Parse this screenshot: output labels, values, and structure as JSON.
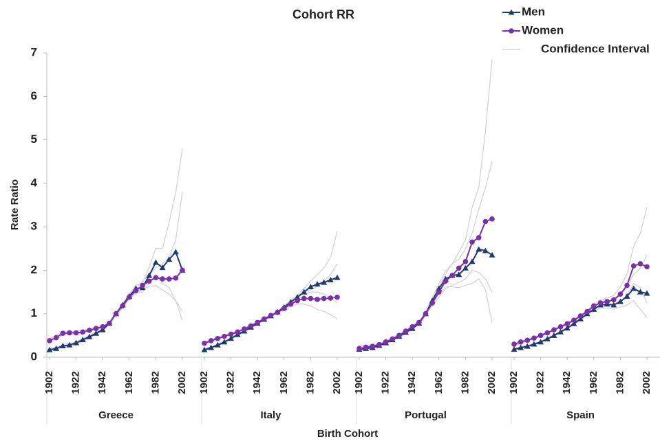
{
  "chart_data": {
    "type": "line",
    "title": "Cohort RR",
    "y_label": "Rate Ratio",
    "x_label": "Birth Cohort",
    "ylim": [
      0,
      7
    ],
    "yticks": [
      0,
      1,
      2,
      3,
      4,
      5,
      6,
      7
    ],
    "xlim": [
      1902,
      2002
    ],
    "xticks": [
      1902,
      1922,
      1942,
      1962,
      1982,
      2002
    ],
    "x": [
      1902,
      1907,
      1912,
      1917,
      1922,
      1927,
      1932,
      1937,
      1942,
      1947,
      1952,
      1957,
      1962,
      1967,
      1972,
      1977,
      1982,
      1987,
      1992,
      1997,
      2002
    ],
    "ci_label": "Confidence Interval",
    "ci_color": "#d3d3d3",
    "panels": [
      {
        "name": "Greece",
        "series": [
          {
            "name": "Men",
            "color": "#1f3a6e",
            "marker": "triangle",
            "values": [
              0.17,
              0.2,
              0.26,
              0.28,
              0.33,
              0.4,
              0.47,
              0.55,
              0.63,
              0.78,
              1.0,
              1.2,
              1.4,
              1.58,
              1.6,
              1.88,
              2.18,
              2.06,
              2.25,
              2.42,
              2.0
            ],
            "lower": [
              0.15,
              0.18,
              0.23,
              0.25,
              0.3,
              0.37,
              0.44,
              0.52,
              0.6,
              0.75,
              0.97,
              1.15,
              1.35,
              1.5,
              1.5,
              1.7,
              1.9,
              1.7,
              1.6,
              1.3,
              0.85
            ],
            "upper": [
              0.2,
              0.23,
              0.29,
              0.31,
              0.36,
              0.43,
              0.5,
              0.58,
              0.66,
              0.81,
              1.03,
              1.25,
              1.45,
              1.66,
              1.7,
              2.08,
              2.5,
              2.5,
              3.1,
              3.8,
              4.8
            ]
          },
          {
            "name": "Women",
            "color": "#7b2fa8",
            "marker": "circle",
            "values": [
              0.38,
              0.45,
              0.55,
              0.56,
              0.56,
              0.58,
              0.62,
              0.66,
              0.7,
              0.78,
              1.0,
              1.18,
              1.38,
              1.53,
              1.65,
              1.75,
              1.83,
              1.8,
              1.8,
              1.82,
              2.0
            ],
            "lower": [
              0.34,
              0.41,
              0.51,
              0.52,
              0.53,
              0.55,
              0.59,
              0.63,
              0.67,
              0.76,
              0.97,
              1.14,
              1.33,
              1.47,
              1.56,
              1.62,
              1.65,
              1.55,
              1.45,
              1.3,
              1.05
            ],
            "upper": [
              0.43,
              0.5,
              0.6,
              0.6,
              0.6,
              0.62,
              0.65,
              0.7,
              0.73,
              0.81,
              1.03,
              1.22,
              1.43,
              1.6,
              1.75,
              1.9,
              2.05,
              2.15,
              2.3,
              2.7,
              3.8
            ]
          }
        ]
      },
      {
        "name": "Italy",
        "series": [
          {
            "name": "Men",
            "color": "#1f3a6e",
            "marker": "triangle",
            "values": [
              0.17,
              0.22,
              0.28,
              0.35,
              0.43,
              0.52,
              0.6,
              0.69,
              0.78,
              0.87,
              0.95,
              1.04,
              1.15,
              1.27,
              1.38,
              1.5,
              1.62,
              1.68,
              1.72,
              1.78,
              1.83
            ],
            "lower": [
              0.15,
              0.2,
              0.26,
              0.33,
              0.41,
              0.5,
              0.58,
              0.67,
              0.76,
              0.85,
              0.93,
              1.02,
              1.12,
              1.23,
              1.33,
              1.42,
              1.5,
              1.5,
              1.45,
              1.35,
              1.25
            ],
            "upper": [
              0.19,
              0.24,
              0.3,
              0.37,
              0.45,
              0.54,
              0.62,
              0.71,
              0.8,
              0.89,
              0.97,
              1.06,
              1.18,
              1.31,
              1.43,
              1.58,
              1.75,
              1.9,
              2.05,
              2.3,
              2.9
            ]
          },
          {
            "name": "Women",
            "color": "#7b2fa8",
            "marker": "circle",
            "values": [
              0.32,
              0.38,
              0.43,
              0.48,
              0.53,
              0.58,
              0.65,
              0.72,
              0.8,
              0.88,
              0.96,
              1.03,
              1.12,
              1.22,
              1.3,
              1.35,
              1.35,
              1.33,
              1.35,
              1.36,
              1.38
            ],
            "lower": [
              0.29,
              0.35,
              0.41,
              0.46,
              0.51,
              0.56,
              0.63,
              0.7,
              0.78,
              0.86,
              0.94,
              1.0,
              1.08,
              1.17,
              1.22,
              1.22,
              1.18,
              1.1,
              1.05,
              0.98,
              0.88
            ],
            "upper": [
              0.35,
              0.41,
              0.45,
              0.5,
              0.55,
              0.6,
              0.67,
              0.74,
              0.82,
              0.9,
              0.98,
              1.06,
              1.16,
              1.27,
              1.38,
              1.48,
              1.55,
              1.62,
              1.75,
              1.9,
              2.15
            ]
          }
        ]
      },
      {
        "name": "Portugal",
        "series": [
          {
            "name": "Men",
            "color": "#1f3a6e",
            "marker": "triangle",
            "values": [
              0.18,
              0.2,
              0.22,
              0.27,
              0.33,
              0.4,
              0.48,
              0.57,
              0.66,
              0.78,
              1.0,
              1.3,
              1.58,
              1.8,
              1.88,
              1.9,
              2.05,
              2.2,
              2.48,
              2.45,
              2.35
            ],
            "lower": [
              0.13,
              0.16,
              0.19,
              0.24,
              0.3,
              0.37,
              0.45,
              0.54,
              0.63,
              0.75,
              0.96,
              1.22,
              1.45,
              1.62,
              1.62,
              1.6,
              1.65,
              1.7,
              1.8,
              1.55,
              0.8
            ],
            "upper": [
              0.25,
              0.25,
              0.26,
              0.3,
              0.36,
              0.43,
              0.51,
              0.6,
              0.69,
              0.81,
              1.04,
              1.38,
              1.7,
              1.98,
              2.15,
              2.25,
              2.5,
              2.85,
              3.4,
              3.9,
              4.5
            ]
          },
          {
            "name": "Women",
            "color": "#7b2fa8",
            "marker": "circle",
            "values": [
              0.2,
              0.23,
              0.25,
              0.29,
              0.35,
              0.42,
              0.5,
              0.6,
              0.7,
              0.8,
              1.0,
              1.25,
              1.5,
              1.75,
              1.88,
              2.05,
              2.2,
              2.65,
              2.75,
              3.12,
              3.18
            ],
            "lower": [
              0.15,
              0.19,
              0.22,
              0.26,
              0.32,
              0.39,
              0.47,
              0.57,
              0.67,
              0.77,
              0.97,
              1.18,
              1.38,
              1.58,
              1.65,
              1.72,
              1.8,
              2.0,
              1.95,
              1.8,
              1.5
            ],
            "upper": [
              0.28,
              0.28,
              0.28,
              0.32,
              0.38,
              0.45,
              0.53,
              0.63,
              0.73,
              0.83,
              1.03,
              1.32,
              1.62,
              1.92,
              2.15,
              2.42,
              2.7,
              3.45,
              3.9,
              5.2,
              6.85
            ]
          }
        ]
      },
      {
        "name": "Spain",
        "series": [
          {
            "name": "Men",
            "color": "#1f3a6e",
            "marker": "triangle",
            "values": [
              0.18,
              0.22,
              0.25,
              0.3,
              0.35,
              0.42,
              0.5,
              0.58,
              0.67,
              0.77,
              0.88,
              1.0,
              1.1,
              1.2,
              1.22,
              1.2,
              1.28,
              1.4,
              1.58,
              1.5,
              1.47
            ],
            "lower": [
              0.16,
              0.2,
              0.23,
              0.28,
              0.33,
              0.4,
              0.48,
              0.56,
              0.65,
              0.75,
              0.86,
              0.97,
              1.06,
              1.13,
              1.13,
              1.1,
              1.15,
              1.2,
              1.3,
              1.1,
              0.92
            ],
            "upper": [
              0.2,
              0.24,
              0.27,
              0.32,
              0.37,
              0.44,
              0.52,
              0.6,
              0.69,
              0.79,
              0.9,
              1.03,
              1.14,
              1.27,
              1.31,
              1.3,
              1.42,
              1.62,
              1.9,
              2.05,
              2.35
            ]
          },
          {
            "name": "Women",
            "color": "#7b2fa8",
            "marker": "circle",
            "values": [
              0.3,
              0.35,
              0.39,
              0.44,
              0.5,
              0.56,
              0.63,
              0.7,
              0.77,
              0.85,
              0.95,
              1.05,
              1.18,
              1.25,
              1.28,
              1.32,
              1.45,
              1.65,
              2.1,
              2.15,
              2.08
            ],
            "lower": [
              0.27,
              0.32,
              0.37,
              0.42,
              0.48,
              0.54,
              0.61,
              0.68,
              0.75,
              0.83,
              0.93,
              1.02,
              1.13,
              1.18,
              1.2,
              1.22,
              1.3,
              1.42,
              1.7,
              1.6,
              1.25
            ],
            "upper": [
              0.33,
              0.38,
              0.41,
              0.46,
              0.52,
              0.58,
              0.65,
              0.72,
              0.79,
              0.87,
              0.97,
              1.08,
              1.23,
              1.32,
              1.36,
              1.42,
              1.62,
              1.92,
              2.55,
              2.85,
              3.45
            ]
          }
        ]
      }
    ]
  }
}
